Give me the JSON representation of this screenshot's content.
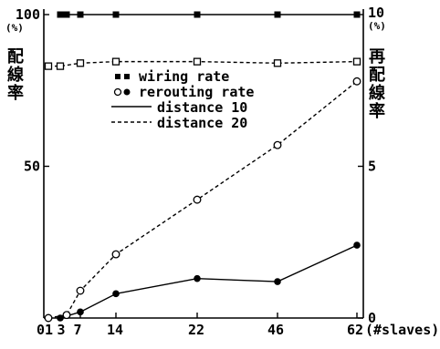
{
  "chart_data": {
    "type": "line",
    "x_categories": [
      "0",
      "1",
      "3",
      "7",
      "14",
      "22",
      "46",
      "62"
    ],
    "x_tick_labels": [
      "0",
      "1",
      "3",
      "7",
      "14",
      "22",
      "46",
      "62"
    ],
    "xlabel": "(#slaves)",
    "ylabel_left": "配線率",
    "ylabel_left_unit": "(%)",
    "ylabel_right": "再配線率",
    "ylabel_right_unit": "(%)",
    "ylim_left": [
      0,
      100
    ],
    "ylim_right": [
      0,
      10
    ],
    "y_ticks_left": [
      "100",
      "50"
    ],
    "y_ticks_right": [
      "10",
      "5",
      "0"
    ],
    "legend": [
      {
        "marker": "filled-square",
        "marker2": "open-square",
        "label": "wiring rate"
      },
      {
        "marker": "open-circle",
        "marker2": "filled-circle",
        "label": "rerouting rate"
      },
      {
        "line": "solid",
        "label": "distance 10"
      },
      {
        "line": "dashed",
        "label": "distance 20"
      }
    ],
    "series": [
      {
        "name": "wiring rate, distance 10",
        "axis": "left",
        "marker": "filled-square",
        "line": "solid",
        "x_index": [
          1,
          2,
          3,
          4,
          5,
          6,
          7
        ],
        "values": [
          100,
          100,
          100,
          100,
          100,
          100,
          100
        ]
      },
      {
        "name": "wiring rate, distance 20",
        "axis": "left",
        "marker": "open-square",
        "line": "dashed",
        "x_index": [
          0,
          1,
          3,
          4,
          5,
          6,
          7
        ],
        "values": [
          83,
          83,
          84,
          84.5,
          84.5,
          84,
          84.5
        ]
      },
      {
        "name": "rerouting rate, distance 10",
        "axis": "right",
        "marker": "filled-circle",
        "line": "solid",
        "x_index": [
          1,
          3,
          4,
          5,
          6,
          7
        ],
        "values": [
          0,
          0.2,
          0.8,
          1.3,
          1.2,
          2.4
        ]
      },
      {
        "name": "rerouting rate, distance 20",
        "axis": "right",
        "marker": "open-circle",
        "line": "dashed",
        "x_index": [
          0,
          2,
          3,
          4,
          5,
          6,
          7
        ],
        "values": [
          0,
          0.1,
          0.9,
          2.1,
          3.9,
          5.7,
          7.8
        ]
      }
    ]
  }
}
